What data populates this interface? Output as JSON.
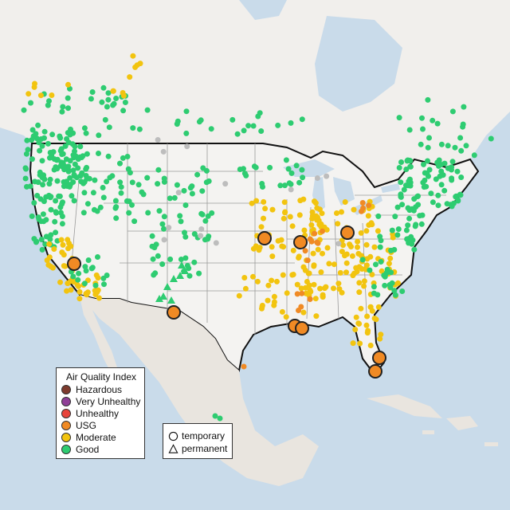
{
  "legend_aqi": {
    "title": "Air Quality Index",
    "items": [
      {
        "label": "Hazardous",
        "color": "#7e3b2e"
      },
      {
        "label": "Very Unhealthy",
        "color": "#8f3f97"
      },
      {
        "label": "Unhealthy",
        "color": "#e8453c"
      },
      {
        "label": "USG",
        "color": "#f08a24"
      },
      {
        "label": "Moderate",
        "color": "#f2c40f"
      },
      {
        "label": "Good",
        "color": "#2ecc71"
      }
    ]
  },
  "legend_type": {
    "items": [
      {
        "label": "temporary",
        "symbol": "circle"
      },
      {
        "label": "permanent",
        "symbol": "triangle"
      }
    ]
  },
  "colors": {
    "water": "#c9dbea",
    "land": "#f1efec",
    "us_land": "#f4f3f1",
    "mexico_land": "#e9e5df",
    "border": "#111111",
    "state_lines": "#9a9a9a",
    "no_data": "#bdbdbd"
  }
}
